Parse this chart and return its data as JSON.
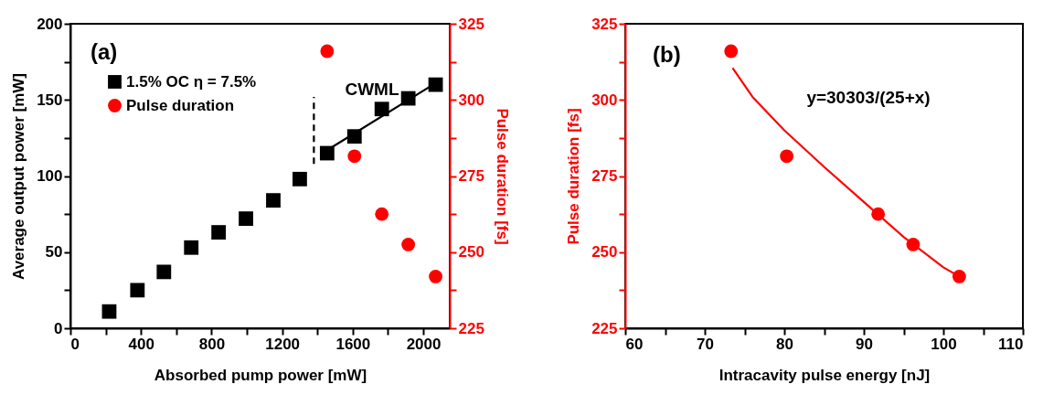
{
  "chart_data": [
    {
      "type": "scatter",
      "xlabel": "Absorbed pump power [mW]",
      "ylabel": "Average output power [mW]",
      "y2label": "Pulse duration [fs]",
      "xlim": [
        0,
        2150
      ],
      "xticks": [
        0,
        {
          "value": 200,
          "label": null
        },
        400,
        {
          "value": 600,
          "label": null
        },
        800,
        {
          "value": 1000,
          "label": null
        },
        1200,
        {
          "value": 1400,
          "label": null
        },
        1600,
        {
          "value": 1800,
          "label": null
        },
        2000
      ],
      "ylim": [
        0,
        200
      ],
      "yticks": [
        0,
        {
          "value": 25,
          "label": null
        },
        50,
        {
          "value": 75,
          "label": null
        },
        100,
        {
          "value": 125,
          "label": null
        },
        150,
        {
          "value": 175,
          "label": null
        },
        200
      ],
      "y2lim": [
        225,
        325
      ],
      "y2ticks": [
        225,
        {
          "value": 237.5,
          "label": null
        },
        250,
        {
          "value": 262.5,
          "label": null
        },
        275,
        {
          "value": 287.5,
          "label": null
        },
        300,
        {
          "value": 312.5,
          "label": null
        },
        325
      ],
      "legend": "top left",
      "grid": false,
      "annotations": [
        "(a)",
        "CWML"
      ],
      "series": [
        {
          "name": "1.5% OC η = 7.5%",
          "color": "#000000",
          "marker": "square",
          "x": [
            220,
            380,
            530,
            685,
            840,
            995,
            1150,
            1300,
            1455,
            1610,
            1765,
            1915,
            2070
          ],
          "values": [
            11,
            25,
            37,
            53,
            63,
            72,
            84,
            98,
            115,
            126,
            144,
            151,
            160
          ]
        },
        {
          "type": "line",
          "color": "#000000",
          "x": [
            1455,
            2070
          ],
          "values": [
            117,
            161
          ]
        },
        {
          "type": "line",
          "color": "#000000",
          "line_style": "dashed",
          "x": [
            1380,
            1380
          ],
          "values": [
            108,
            152
          ]
        },
        {
          "name": "Pulse duration",
          "color": "#ff0000",
          "marker": "circle",
          "axis": "y2",
          "x": [
            1455,
            1610,
            1765,
            1915,
            2070
          ],
          "values": [
            316,
            281.5,
            262.5,
            252.5,
            242
          ]
        }
      ]
    },
    {
      "type": "scatter",
      "xlabel": "Intracavity pulse energy [nJ]",
      "ylabel": "Pulse duration [fs]",
      "xlim": [
        60,
        110
      ],
      "xticks": [
        60,
        {
          "value": 65,
          "label": null
        },
        70,
        {
          "value": 75,
          "label": null
        },
        80,
        {
          "value": 85,
          "label": null
        },
        90,
        {
          "value": 95,
          "label": null
        },
        100,
        {
          "value": 105,
          "label": null
        },
        110
      ],
      "ylim": [
        225,
        325
      ],
      "yticks": [
        225,
        {
          "value": 237.5,
          "label": null
        },
        250,
        {
          "value": 262.5,
          "label": null
        },
        275,
        {
          "value": 287.5,
          "label": null
        },
        300,
        {
          "value": 312.5,
          "label": null
        },
        325
      ],
      "grid": false,
      "annotations": [
        "(b)",
        "y=30303/(25+x)"
      ],
      "series": [
        {
          "color": "#ff0000",
          "marker": "circle",
          "x": [
            73.3,
            80.3,
            91.8,
            96.2,
            102
          ],
          "values": [
            316,
            281.5,
            262.5,
            252.5,
            242
          ]
        },
        {
          "type": "line",
          "color": "#ff0000",
          "x": [
            73.5,
            76,
            80,
            85,
            90,
            95,
            100,
            102
          ],
          "values": [
            310.5,
            301,
            290,
            278,
            266.5,
            255,
            245,
            242
          ]
        }
      ]
    }
  ]
}
